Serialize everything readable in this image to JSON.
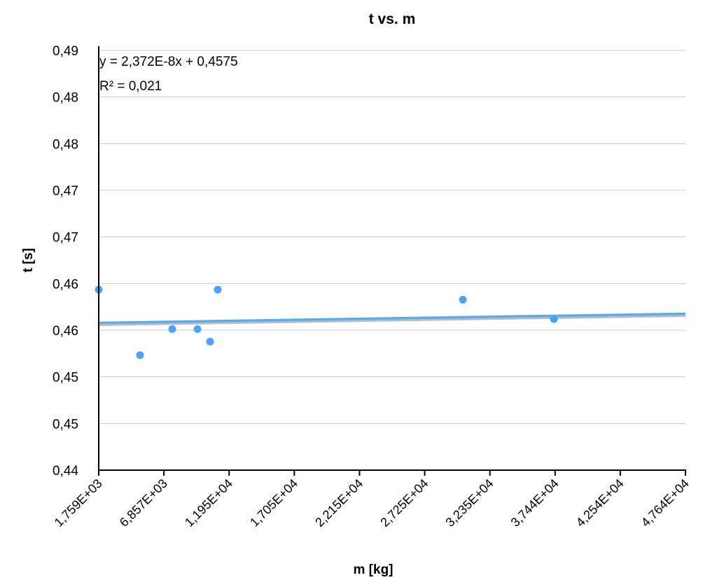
{
  "chart_data": {
    "type": "scatter",
    "title": "t vs. m",
    "xlabel": "m [kg]",
    "ylabel": "t [s]",
    "xlim": [
      1759,
      47640
    ],
    "ylim": [
      0.44,
      0.49
    ],
    "x_tick_labels": [
      "1,759E+03",
      "6,857E+03",
      "1,195E+04",
      "1,705E+04",
      "2,215E+04",
      "2,725E+04",
      "3,235E+04",
      "3,744E+04",
      "4,254E+04",
      "4,764E+04"
    ],
    "y_tick_labels": [
      "0,44",
      "0,45",
      "0,45",
      "0,46",
      "0,46",
      "0,47",
      "0,47",
      "0,48",
      "0,48",
      "0,49"
    ],
    "grid": true,
    "series": [
      {
        "name": "t",
        "color": "#4da3f3",
        "points": [
          {
            "x": 1759,
            "y": 0.4615
          },
          {
            "x": 4990,
            "y": 0.4537
          },
          {
            "x": 7509,
            "y": 0.4568
          },
          {
            "x": 9480,
            "y": 0.4568
          },
          {
            "x": 10466,
            "y": 0.4553
          },
          {
            "x": 11068,
            "y": 0.4615
          },
          {
            "x": 30234,
            "y": 0.4603
          },
          {
            "x": 37353,
            "y": 0.458
          }
        ]
      }
    ],
    "trendline": {
      "slope": 2.372e-08,
      "intercept": 0.4575,
      "color": "#5aacf0",
      "equation": "y = 2,372E-8x + 0,4575",
      "r_squared": "R² = 0,021"
    }
  }
}
